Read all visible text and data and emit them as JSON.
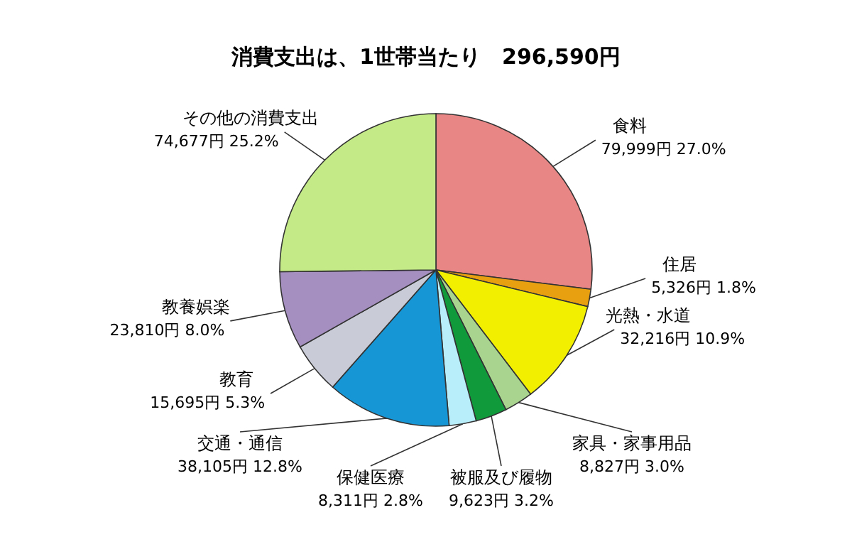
{
  "chart_data": {
    "type": "pie",
    "title": "消費支出は、1世帯当たり　296,590円",
    "categories": [
      "食料",
      "住居",
      "光熱・水道",
      "家具・家事用品",
      "被服及び履物",
      "保健医療",
      "交通・通信",
      "教育",
      "教養娯楽",
      "その他の消費支出"
    ],
    "values": [
      79999,
      5326,
      32216,
      8827,
      9623,
      8311,
      38105,
      15695,
      23810,
      74677
    ],
    "colors": [
      "#e88585",
      "#e8a010",
      "#f2f000",
      "#a8d490",
      "#119a3c",
      "#b8eefa",
      "#1796d6",
      "#c9ccd6",
      "#a48fc0",
      "#c4ea88"
    ],
    "value_labels": [
      "79,999円 27.0%",
      "5,326円 1.8%",
      "32,216円 10.9%",
      "8,827円 3.0%",
      "9,623円 3.2%",
      "8,311円 2.8%",
      "38,105円 12.8%",
      "15,695円 5.3%",
      "23,810円 8.0%",
      "74,677円 25.2%"
    ]
  }
}
